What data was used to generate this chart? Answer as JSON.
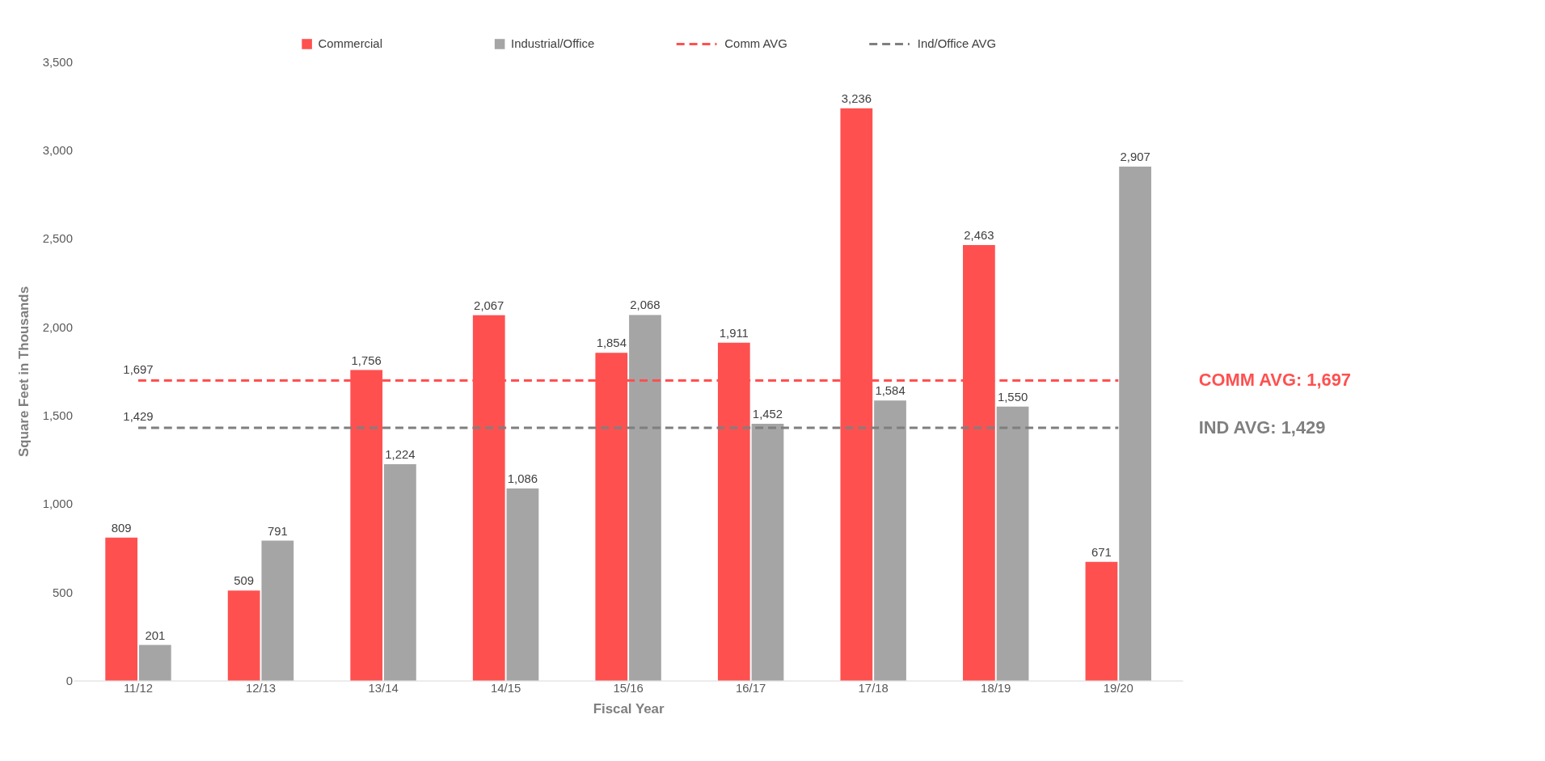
{
  "chart_data": {
    "type": "bar",
    "xlabel": "Fiscal Year",
    "ylabel": "Square Feet in Thousands",
    "categories": [
      "11/12",
      "12/13",
      "13/14",
      "14/15",
      "15/16",
      "16/17",
      "17/18",
      "18/19",
      "19/20"
    ],
    "series": [
      {
        "name": "Commercial",
        "color": "#ff5050",
        "values": [
          809,
          509,
          1756,
          2067,
          1854,
          1911,
          3236,
          2463,
          671
        ],
        "value_labels": [
          "809",
          "509",
          "1,756",
          "2,067",
          "1,854",
          "1,911",
          "3,236",
          "2,463",
          "671"
        ]
      },
      {
        "name": "Industrial/Office",
        "color": "#a5a5a5",
        "values": [
          201,
          791,
          1224,
          1086,
          2068,
          1452,
          1584,
          1550,
          2907
        ],
        "value_labels": [
          "201",
          "791",
          "1,224",
          "1,086",
          "2,068",
          "1,452",
          "1,584",
          "1,550",
          "2,907"
        ]
      },
      {
        "name": "Comm AVG",
        "type": "line",
        "color": "#ff5050",
        "line_style": "dashed",
        "values": [
          1697,
          1697,
          1697,
          1697,
          1697,
          1697,
          1697,
          1697,
          1697
        ],
        "value_labels": [
          "1,697",
          null,
          null,
          null,
          null,
          null,
          null,
          null,
          null
        ]
      },
      {
        "name": "Ind/Office AVG",
        "type": "line",
        "color": "#7f7f7f",
        "line_style": "dashed",
        "values": [
          1429,
          1429,
          1429,
          1429,
          1429,
          1429,
          1429,
          1429,
          1429
        ],
        "value_labels": [
          "1,429",
          null,
          null,
          null,
          null,
          null,
          null,
          null,
          null
        ]
      }
    ],
    "ylim": [
      0,
      3500
    ],
    "yticks": [
      0,
      {
        "value": 500,
        "label": "500"
      },
      {
        "value": 1000,
        "label": "1,000"
      },
      {
        "value": 1500,
        "label": "1,500"
      },
      {
        "value": 2000,
        "label": "2,000"
      },
      {
        "value": 2500,
        "label": "2,500"
      },
      {
        "value": 3000,
        "label": "3,000"
      },
      {
        "value": 3500,
        "label": "3,500"
      }
    ],
    "grid": false,
    "legend": "top",
    "annotations": [
      "COMM AVG: 1,697",
      "IND AVG: 1,429"
    ]
  }
}
